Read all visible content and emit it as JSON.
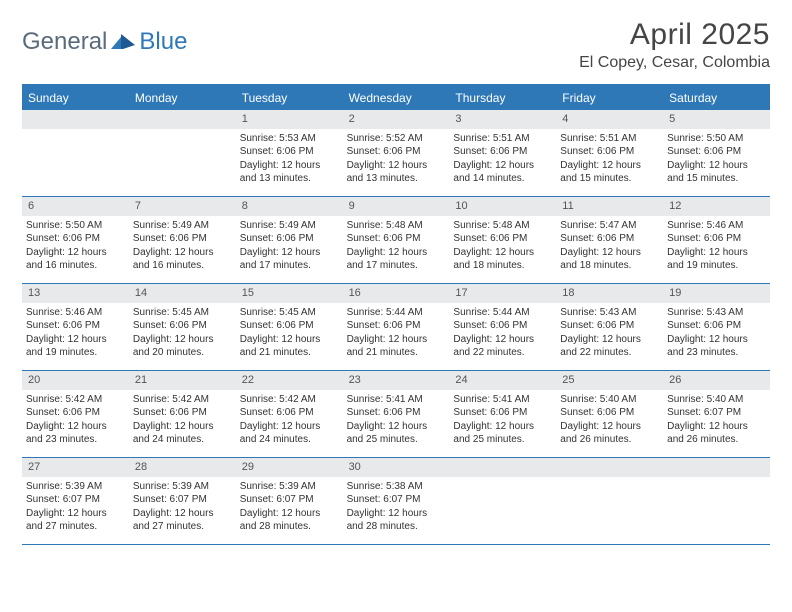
{
  "brand": {
    "part1": "General",
    "part2": "Blue"
  },
  "title": "April 2025",
  "location": "El Copey, Cesar, Colombia",
  "colors": {
    "accent": "#2f78b8",
    "header_text": "#454545",
    "daynum_bg": "#e8e9ea",
    "body_text": "#333333",
    "logo_gray": "#5a6b7a"
  },
  "weekdays": [
    "Sunday",
    "Monday",
    "Tuesday",
    "Wednesday",
    "Thursday",
    "Friday",
    "Saturday"
  ],
  "weeks": [
    [
      null,
      null,
      {
        "n": "1",
        "sunrise": "Sunrise: 5:53 AM",
        "sunset": "Sunset: 6:06 PM",
        "dl1": "Daylight: 12 hours",
        "dl2": "and 13 minutes."
      },
      {
        "n": "2",
        "sunrise": "Sunrise: 5:52 AM",
        "sunset": "Sunset: 6:06 PM",
        "dl1": "Daylight: 12 hours",
        "dl2": "and 13 minutes."
      },
      {
        "n": "3",
        "sunrise": "Sunrise: 5:51 AM",
        "sunset": "Sunset: 6:06 PM",
        "dl1": "Daylight: 12 hours",
        "dl2": "and 14 minutes."
      },
      {
        "n": "4",
        "sunrise": "Sunrise: 5:51 AM",
        "sunset": "Sunset: 6:06 PM",
        "dl1": "Daylight: 12 hours",
        "dl2": "and 15 minutes."
      },
      {
        "n": "5",
        "sunrise": "Sunrise: 5:50 AM",
        "sunset": "Sunset: 6:06 PM",
        "dl1": "Daylight: 12 hours",
        "dl2": "and 15 minutes."
      }
    ],
    [
      {
        "n": "6",
        "sunrise": "Sunrise: 5:50 AM",
        "sunset": "Sunset: 6:06 PM",
        "dl1": "Daylight: 12 hours",
        "dl2": "and 16 minutes."
      },
      {
        "n": "7",
        "sunrise": "Sunrise: 5:49 AM",
        "sunset": "Sunset: 6:06 PM",
        "dl1": "Daylight: 12 hours",
        "dl2": "and 16 minutes."
      },
      {
        "n": "8",
        "sunrise": "Sunrise: 5:49 AM",
        "sunset": "Sunset: 6:06 PM",
        "dl1": "Daylight: 12 hours",
        "dl2": "and 17 minutes."
      },
      {
        "n": "9",
        "sunrise": "Sunrise: 5:48 AM",
        "sunset": "Sunset: 6:06 PM",
        "dl1": "Daylight: 12 hours",
        "dl2": "and 17 minutes."
      },
      {
        "n": "10",
        "sunrise": "Sunrise: 5:48 AM",
        "sunset": "Sunset: 6:06 PM",
        "dl1": "Daylight: 12 hours",
        "dl2": "and 18 minutes."
      },
      {
        "n": "11",
        "sunrise": "Sunrise: 5:47 AM",
        "sunset": "Sunset: 6:06 PM",
        "dl1": "Daylight: 12 hours",
        "dl2": "and 18 minutes."
      },
      {
        "n": "12",
        "sunrise": "Sunrise: 5:46 AM",
        "sunset": "Sunset: 6:06 PM",
        "dl1": "Daylight: 12 hours",
        "dl2": "and 19 minutes."
      }
    ],
    [
      {
        "n": "13",
        "sunrise": "Sunrise: 5:46 AM",
        "sunset": "Sunset: 6:06 PM",
        "dl1": "Daylight: 12 hours",
        "dl2": "and 19 minutes."
      },
      {
        "n": "14",
        "sunrise": "Sunrise: 5:45 AM",
        "sunset": "Sunset: 6:06 PM",
        "dl1": "Daylight: 12 hours",
        "dl2": "and 20 minutes."
      },
      {
        "n": "15",
        "sunrise": "Sunrise: 5:45 AM",
        "sunset": "Sunset: 6:06 PM",
        "dl1": "Daylight: 12 hours",
        "dl2": "and 21 minutes."
      },
      {
        "n": "16",
        "sunrise": "Sunrise: 5:44 AM",
        "sunset": "Sunset: 6:06 PM",
        "dl1": "Daylight: 12 hours",
        "dl2": "and 21 minutes."
      },
      {
        "n": "17",
        "sunrise": "Sunrise: 5:44 AM",
        "sunset": "Sunset: 6:06 PM",
        "dl1": "Daylight: 12 hours",
        "dl2": "and 22 minutes."
      },
      {
        "n": "18",
        "sunrise": "Sunrise: 5:43 AM",
        "sunset": "Sunset: 6:06 PM",
        "dl1": "Daylight: 12 hours",
        "dl2": "and 22 minutes."
      },
      {
        "n": "19",
        "sunrise": "Sunrise: 5:43 AM",
        "sunset": "Sunset: 6:06 PM",
        "dl1": "Daylight: 12 hours",
        "dl2": "and 23 minutes."
      }
    ],
    [
      {
        "n": "20",
        "sunrise": "Sunrise: 5:42 AM",
        "sunset": "Sunset: 6:06 PM",
        "dl1": "Daylight: 12 hours",
        "dl2": "and 23 minutes."
      },
      {
        "n": "21",
        "sunrise": "Sunrise: 5:42 AM",
        "sunset": "Sunset: 6:06 PM",
        "dl1": "Daylight: 12 hours",
        "dl2": "and 24 minutes."
      },
      {
        "n": "22",
        "sunrise": "Sunrise: 5:42 AM",
        "sunset": "Sunset: 6:06 PM",
        "dl1": "Daylight: 12 hours",
        "dl2": "and 24 minutes."
      },
      {
        "n": "23",
        "sunrise": "Sunrise: 5:41 AM",
        "sunset": "Sunset: 6:06 PM",
        "dl1": "Daylight: 12 hours",
        "dl2": "and 25 minutes."
      },
      {
        "n": "24",
        "sunrise": "Sunrise: 5:41 AM",
        "sunset": "Sunset: 6:06 PM",
        "dl1": "Daylight: 12 hours",
        "dl2": "and 25 minutes."
      },
      {
        "n": "25",
        "sunrise": "Sunrise: 5:40 AM",
        "sunset": "Sunset: 6:06 PM",
        "dl1": "Daylight: 12 hours",
        "dl2": "and 26 minutes."
      },
      {
        "n": "26",
        "sunrise": "Sunrise: 5:40 AM",
        "sunset": "Sunset: 6:07 PM",
        "dl1": "Daylight: 12 hours",
        "dl2": "and 26 minutes."
      }
    ],
    [
      {
        "n": "27",
        "sunrise": "Sunrise: 5:39 AM",
        "sunset": "Sunset: 6:07 PM",
        "dl1": "Daylight: 12 hours",
        "dl2": "and 27 minutes."
      },
      {
        "n": "28",
        "sunrise": "Sunrise: 5:39 AM",
        "sunset": "Sunset: 6:07 PM",
        "dl1": "Daylight: 12 hours",
        "dl2": "and 27 minutes."
      },
      {
        "n": "29",
        "sunrise": "Sunrise: 5:39 AM",
        "sunset": "Sunset: 6:07 PM",
        "dl1": "Daylight: 12 hours",
        "dl2": "and 28 minutes."
      },
      {
        "n": "30",
        "sunrise": "Sunrise: 5:38 AM",
        "sunset": "Sunset: 6:07 PM",
        "dl1": "Daylight: 12 hours",
        "dl2": "and 28 minutes."
      },
      null,
      null,
      null
    ]
  ]
}
